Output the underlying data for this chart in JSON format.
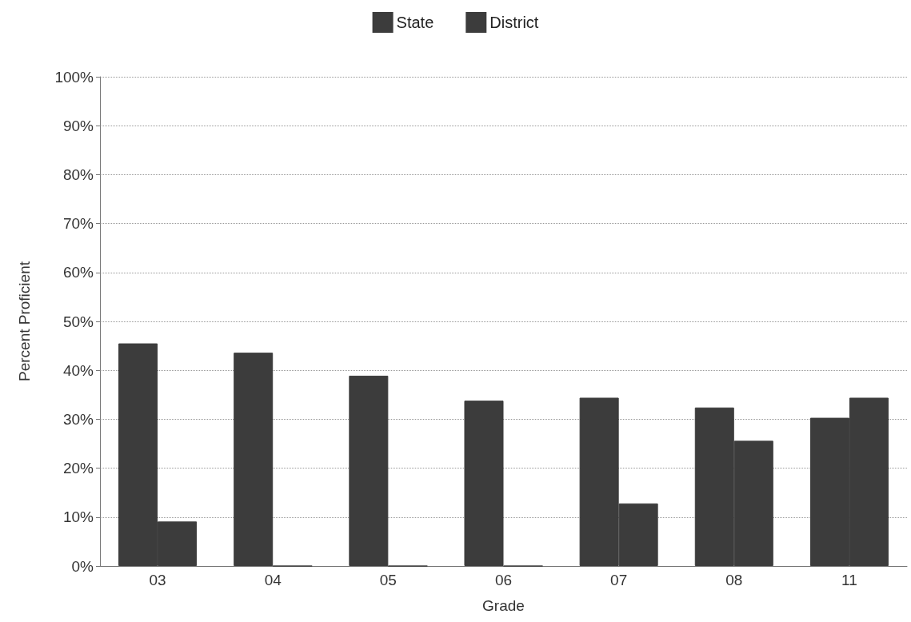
{
  "chart_data": {
    "type": "bar",
    "xlabel": "Grade",
    "ylabel": "Percent Proficient",
    "categories": [
      "03",
      "04",
      "05",
      "06",
      "07",
      "08",
      "11"
    ],
    "series": [
      {
        "name": "State",
        "color": "#3c3c3c",
        "values": [
          45.5,
          43.6,
          38.9,
          33.8,
          34.4,
          32.4,
          30.3
        ]
      },
      {
        "name": "District",
        "color": "#3c3c3c",
        "values": [
          9.1,
          0,
          0,
          0,
          12.8,
          25.6,
          34.4
        ]
      }
    ],
    "ylim": [
      0,
      100
    ],
    "yticks": [
      {
        "value": 0,
        "label": "0%"
      },
      {
        "value": 10,
        "label": "10%"
      },
      {
        "value": 20,
        "label": "20%"
      },
      {
        "value": 30,
        "label": "30%"
      },
      {
        "value": 40,
        "label": "40%"
      },
      {
        "value": 50,
        "label": "50%"
      },
      {
        "value": 60,
        "label": "60%"
      },
      {
        "value": 70,
        "label": "70%"
      },
      {
        "value": 80,
        "label": "80%"
      },
      {
        "value": 90,
        "label": "90%"
      },
      {
        "value": 100,
        "label": "100%"
      }
    ],
    "grid": "y",
    "legend": "top"
  }
}
